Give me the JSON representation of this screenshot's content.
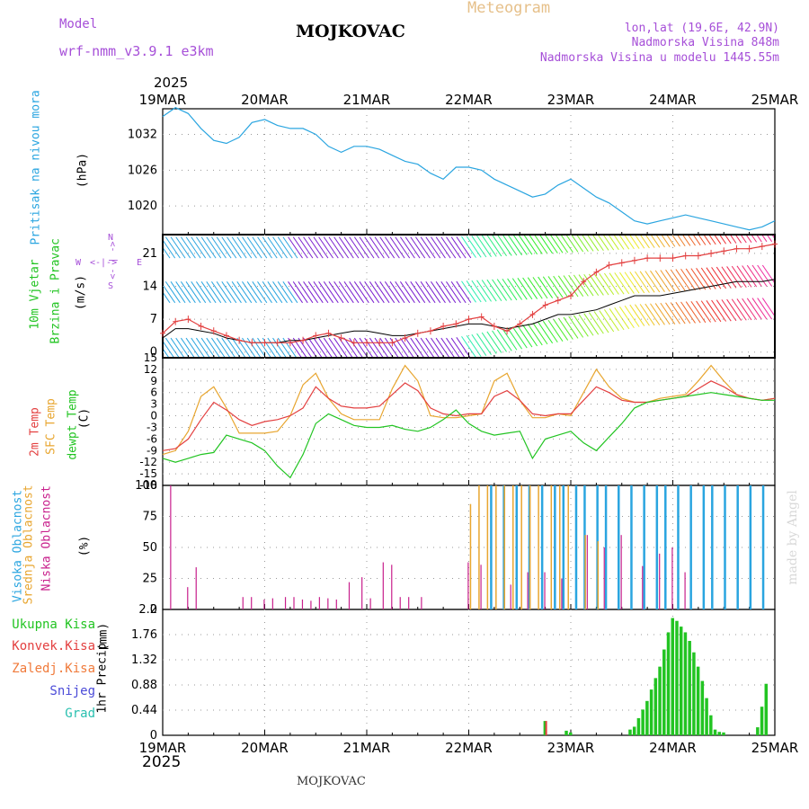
{
  "header": {
    "model_label": "Model",
    "model_name": "wrf-nmm_v3.9.1 e3km",
    "title": "MOJKOVAC",
    "meteogram": "Meteogram",
    "lonlat": "lon,lat (19.6E, 42.9N)",
    "elevation": "Nadmorska Visina 848m",
    "model_elevation": "Nadmorska Visina u modelu 1445.55m",
    "year_top": "2025",
    "year_bottom": "2025",
    "footer_station": "MOJKOVAC",
    "watermark": "made by Angel"
  },
  "colors": {
    "pressure": "#2aa5e0",
    "wind_purple": "#7a1fd0",
    "wind_red": "#e34040",
    "temp2m": "#e34040",
    "sfc": "#e8a630",
    "dew": "#22c422",
    "high_cloud": "#2aa5e0",
    "mid_cloud": "#e8a630",
    "low_cloud": "#c8208c",
    "precip": "#22c422"
  },
  "chart_data": {
    "x_axis": {
      "labels": [
        "19MAR",
        "20MAR",
        "21MAR",
        "22MAR",
        "23MAR",
        "24MAR",
        "25MAR"
      ],
      "range_hours": [
        0,
        144
      ]
    },
    "panels": [
      {
        "id": "pressure",
        "type": "line",
        "labels": [
          "Pritisak na nivou mora",
          "(hPa)"
        ],
        "yticks": [
          "1032",
          "1026",
          "1020"
        ],
        "ylim": [
          1015.2,
          1036.3
        ],
        "series": [
          {
            "name": "MSLP",
            "x": [
              0,
              3,
              6,
              9,
              12,
              15,
              18,
              21,
              24,
              27,
              30,
              33,
              36,
              39,
              42,
              45,
              48,
              51,
              54,
              57,
              60,
              63,
              66,
              69,
              72,
              75,
              78,
              81,
              84,
              87,
              90,
              93,
              96,
              99,
              102,
              105,
              108,
              111,
              114,
              117,
              120,
              123,
              126,
              129,
              132,
              135,
              138,
              141,
              144
            ],
            "y": [
              1035.0,
              1036.5,
              1035.5,
              1033.0,
              1031.0,
              1030.5,
              1031.5,
              1034.0,
              1034.5,
              1033.5,
              1033.0,
              1033.0,
              1032.0,
              1030.0,
              1029.0,
              1030.0,
              1030.0,
              1029.5,
              1028.5,
              1027.5,
              1027.0,
              1025.5,
              1024.5,
              1026.5,
              1026.5,
              1026.0,
              1024.5,
              1023.5,
              1022.5,
              1021.5,
              1022.0,
              1023.5,
              1024.5,
              1023.0,
              1021.5,
              1020.5,
              1019.0,
              1017.5,
              1017.0,
              1017.5,
              1018.0,
              1018.5,
              1018.0,
              1017.5,
              1017.0,
              1016.5,
              1016.0,
              1016.5,
              1017.5
            ]
          }
        ]
      },
      {
        "id": "wind",
        "type": "line",
        "labels": [
          "10m Vjetar",
          "Brzina i Pravac",
          "(m/s)"
        ],
        "compass": [
          "W",
          "E",
          "N",
          "S"
        ],
        "yticks": [
          "21",
          "14",
          "7",
          "0"
        ],
        "ylim": [
          -1.2,
          25
        ],
        "series": [
          {
            "name": "Gust bottom",
            "x": [
              0,
              3,
              6,
              9,
              12,
              15,
              18,
              21,
              24,
              27,
              30,
              33,
              36,
              39,
              42,
              45,
              48,
              51,
              54,
              57,
              60,
              63,
              66,
              69,
              72,
              75,
              78,
              81,
              84,
              87,
              90,
              93,
              96,
              99,
              102,
              105,
              108,
              111,
              114,
              117,
              120,
              123,
              126,
              129,
              132,
              135,
              138,
              141,
              144
            ],
            "y": [
              3.0,
              5.0,
              5.0,
              4.5,
              4.0,
              3.0,
              2.5,
              2.0,
              2.0,
              2.0,
              2.5,
              2.5,
              3.0,
              3.5,
              4.0,
              4.5,
              4.5,
              4.0,
              3.5,
              3.5,
              4.0,
              4.5,
              5.0,
              5.5,
              6.0,
              6.0,
              5.5,
              5.0,
              5.5,
              6.0,
              7.0,
              8.0,
              8.0,
              8.5,
              9.0,
              10.0,
              11.0,
              12.0,
              12.0,
              12.0,
              12.5,
              13.0,
              13.5,
              14.0,
              14.5,
              15.0,
              15.0,
              15.0,
              15.5
            ]
          },
          {
            "name": "Speed trace",
            "x": [
              0,
              3,
              6,
              9,
              12,
              15,
              18,
              21,
              24,
              27,
              30,
              33,
              36,
              39,
              42,
              45,
              48,
              51,
              54,
              57,
              60,
              63,
              66,
              69,
              72,
              75,
              78,
              81,
              84,
              87,
              90,
              93,
              96,
              99,
              102,
              105,
              108,
              111,
              114,
              117,
              120,
              123,
              126,
              129,
              132,
              135,
              138,
              141,
              144
            ],
            "y": [
              4.0,
              6.5,
              7.0,
              5.5,
              4.5,
              3.5,
              2.5,
              2.0,
              2.0,
              2.0,
              2.0,
              2.5,
              3.5,
              4.0,
              3.0,
              2.0,
              2.0,
              2.0,
              2.0,
              3.0,
              4.0,
              4.5,
              5.5,
              6.0,
              7.0,
              7.5,
              5.5,
              4.5,
              6.0,
              8.0,
              10.0,
              11.0,
              12.0,
              15.0,
              17.0,
              18.5,
              19.0,
              19.5,
              20.0,
              20.0,
              20.0,
              20.5,
              20.5,
              21.0,
              21.5,
              22.0,
              22.0,
              22.5,
              23.0
            ]
          }
        ]
      },
      {
        "id": "temperature",
        "type": "line",
        "labels": [
          "2m Temp",
          "SFC Temp",
          "dewpt Temp",
          "(C)"
        ],
        "yticks": [
          "15",
          "12",
          "9",
          "6",
          "3",
          "0",
          "-3",
          "-6",
          "-9",
          "-12",
          "-15",
          "-18"
        ],
        "ylim": [
          -18,
          15
        ],
        "series": [
          {
            "name": "2m Temp",
            "x": [
              0,
              3,
              6,
              9,
              12,
              15,
              18,
              21,
              24,
              27,
              30,
              33,
              36,
              39,
              42,
              45,
              48,
              51,
              54,
              57,
              60,
              63,
              66,
              69,
              72,
              75,
              78,
              81,
              84,
              87,
              90,
              93,
              96,
              99,
              102,
              105,
              108,
              111,
              114,
              117,
              120,
              123,
              126,
              129,
              132,
              135,
              138,
              141,
              144
            ],
            "y": [
              -9.0,
              -8.5,
              -6.0,
              -1.0,
              3.5,
              1.5,
              -1.0,
              -2.5,
              -1.5,
              -1.0,
              0.0,
              2.0,
              7.5,
              4.5,
              2.5,
              2.0,
              2.0,
              2.5,
              5.5,
              8.5,
              6.5,
              2.0,
              0.5,
              0.0,
              0.5,
              0.5,
              5.0,
              6.5,
              4.0,
              0.5,
              0.0,
              0.5,
              0.5,
              4.0,
              7.5,
              6.0,
              4.0,
              3.5,
              3.5,
              4.0,
              4.5,
              5.0,
              7.0,
              9.0,
              7.5,
              5.5,
              4.5,
              4.0,
              4.5
            ]
          },
          {
            "name": "SFC Temp",
            "x": [
              0,
              3,
              6,
              9,
              12,
              15,
              18,
              21,
              24,
              27,
              30,
              33,
              36,
              39,
              42,
              45,
              48,
              51,
              54,
              57,
              60,
              63,
              66,
              69,
              72,
              75,
              78,
              81,
              84,
              87,
              90,
              93,
              96,
              99,
              102,
              105,
              108,
              111,
              114,
              117,
              120,
              123,
              126,
              129,
              132,
              135,
              138,
              141,
              144
            ],
            "y": [
              -10.0,
              -9.0,
              -4.0,
              5.0,
              7.5,
              2.0,
              -4.5,
              -4.5,
              -4.5,
              -4.0,
              0.0,
              8.0,
              11.0,
              4.5,
              0.5,
              -1.0,
              -1.0,
              -1.0,
              7.0,
              13.0,
              9.0,
              0.0,
              -0.5,
              -0.5,
              0.0,
              0.5,
              9.0,
              11.0,
              4.0,
              -0.5,
              -0.5,
              0.5,
              0.0,
              6.0,
              12.0,
              7.5,
              4.5,
              3.5,
              3.5,
              4.5,
              5.0,
              5.5,
              9.0,
              13.0,
              9.0,
              5.5,
              4.5,
              4.0,
              4.5
            ]
          },
          {
            "name": "dewpt Temp",
            "x": [
              0,
              3,
              6,
              9,
              12,
              15,
              18,
              21,
              24,
              27,
              30,
              33,
              36,
              39,
              42,
              45,
              48,
              51,
              54,
              57,
              60,
              63,
              66,
              69,
              72,
              75,
              78,
              81,
              84,
              87,
              90,
              93,
              96,
              99,
              102,
              105,
              108,
              111,
              114,
              117,
              120,
              123,
              126,
              129,
              132,
              135,
              138,
              141,
              144
            ],
            "y": [
              -11.0,
              -12.0,
              -11.0,
              -10.0,
              -9.5,
              -5.0,
              -6.0,
              -7.0,
              -9.0,
              -13.0,
              -16.0,
              -10.0,
              -2.0,
              0.5,
              -1.0,
              -2.5,
              -3.0,
              -3.0,
              -2.5,
              -3.5,
              -4.0,
              -3.0,
              -1.0,
              1.5,
              -2.0,
              -4.0,
              -5.0,
              -4.5,
              -4.0,
              -11.0,
              -6.0,
              -5.0,
              -4.0,
              -7.0,
              -9.0,
              -5.5,
              -2.0,
              2.0,
              3.5,
              4.0,
              4.5,
              5.0,
              5.5,
              6.0,
              5.5,
              5.0,
              4.5,
              4.0,
              4.0
            ]
          }
        ]
      },
      {
        "id": "clouds",
        "type": "bar",
        "labels": [
          "Visoka Oblacnost",
          "Srednja Oblacnost",
          "Niska Oblacnost",
          "(%)"
        ],
        "yticks": [
          "100",
          "75",
          "50",
          "25",
          "0"
        ],
        "ylim": [
          0,
          100
        ],
        "series": [
          {
            "name": "Visoka Oblacnost",
            "x": [
              77,
              80,
              83,
              86,
              89,
              92,
              94,
              97,
              99,
              102,
              104,
              107,
              110,
              113,
              116,
              118,
              121,
              124,
              127,
              129,
              132,
              135,
              138,
              141
            ],
            "y": [
              100,
              100,
              100,
              100,
              100,
              100,
              100,
              100,
              100,
              100,
              100,
              100,
              100,
              100,
              100,
              100,
              100,
              100,
              100,
              100,
              100,
              100,
              100,
              100
            ]
          },
          {
            "name": "Srednja Oblacnost",
            "x": [
              72,
              74,
              76,
              78,
              80,
              82,
              84,
              86,
              88,
              91,
              93,
              95,
              99,
              102
            ],
            "y": [
              85,
              100,
              100,
              100,
              100,
              100,
              100,
              100,
              100,
              100,
              100,
              100,
              60,
              55
            ]
          },
          {
            "name": "Niska Oblacnost",
            "x": [
              2,
              6,
              8,
              19,
              21,
              24,
              26,
              29,
              31,
              33,
              35,
              37,
              39,
              41,
              44,
              47,
              49,
              52,
              54,
              56,
              58,
              61,
              72,
              75,
              82,
              86,
              90,
              94,
              100,
              104,
              108,
              113,
              117,
              120,
              123
            ],
            "y": [
              100,
              18,
              34,
              10,
              10,
              8,
              9,
              10,
              10,
              8,
              7,
              10,
              9,
              8,
              22,
              26,
              9,
              38,
              36,
              10,
              10,
              10,
              38,
              36,
              20,
              30,
              30,
              25,
              60,
              50,
              60,
              35,
              45,
              50,
              30
            ]
          }
        ]
      },
      {
        "id": "precip",
        "type": "bar",
        "labels": [
          "Ukupna Kisa",
          "Konvek.Kisa",
          "Zaledj.Kisa",
          "Snijeg",
          "Grad",
          "1hr Precip",
          "(mm)"
        ],
        "yticks": [
          "2.2",
          "1.76",
          "1.32",
          "0.88",
          "0.44",
          "0"
        ],
        "ylim": [
          0,
          2.2
        ],
        "series": [
          {
            "name": "Ukupna Kisa",
            "x": [
              90,
              95,
              96,
              110,
              111,
              112,
              113,
              114,
              115,
              116,
              117,
              118,
              119,
              120,
              121,
              122,
              123,
              124,
              125,
              126,
              127,
              128,
              129,
              130,
              131,
              132,
              140,
              141,
              142
            ],
            "y": [
              0.25,
              0.08,
              0.05,
              0.1,
              0.15,
              0.3,
              0.45,
              0.6,
              0.8,
              1.0,
              1.2,
              1.5,
              1.8,
              2.05,
              2.0,
              1.9,
              1.8,
              1.65,
              1.45,
              1.2,
              0.95,
              0.65,
              0.35,
              0.1,
              0.06,
              0.05,
              0.14,
              0.5,
              0.9
            ]
          },
          {
            "name": "Konvek.Kisa",
            "x": [
              90
            ],
            "y": [
              0.25
            ]
          },
          {
            "name": "Zaledj.Kisa",
            "x": [],
            "y": []
          },
          {
            "name": "Snijeg",
            "x": [],
            "y": []
          },
          {
            "name": "Grad",
            "x": [],
            "y": []
          }
        ]
      }
    ]
  }
}
